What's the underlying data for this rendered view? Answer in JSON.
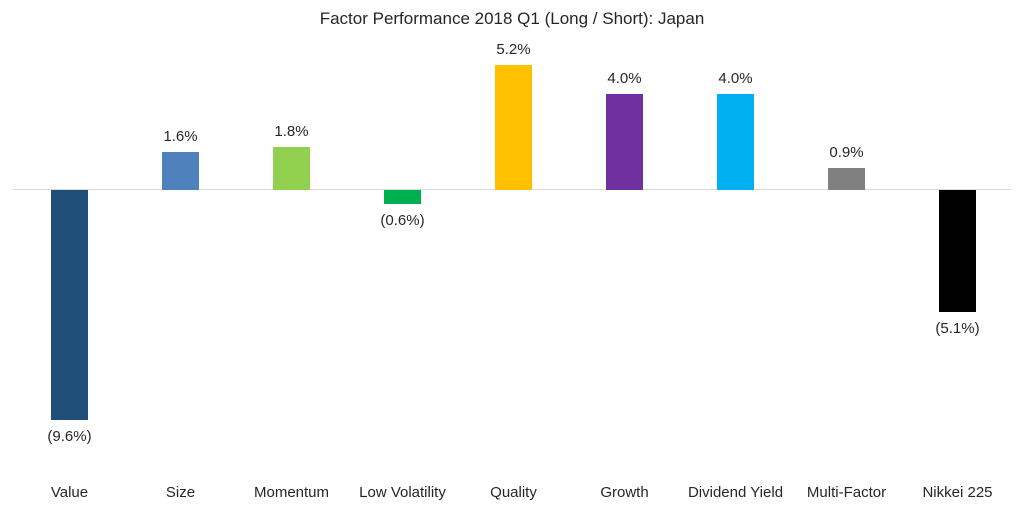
{
  "chart_data": {
    "type": "bar",
    "title": "Factor Performance 2018 Q1 (Long / Short): Japan",
    "categories": [
      "Value",
      "Size",
      "Momentum",
      "Low Volatility",
      "Quality",
      "Growth",
      "Dividend Yield",
      "Multi-Factor",
      "Nikkei 225"
    ],
    "values": [
      -9.6,
      1.6,
      1.8,
      -0.6,
      5.2,
      4.0,
      4.0,
      0.9,
      -5.1
    ],
    "data_labels": [
      "(9.6%)",
      "1.6%",
      "1.8%",
      "(0.6%)",
      "5.2%",
      "4.0%",
      "4.0%",
      "0.9%",
      "(5.1%)"
    ],
    "bar_colors": [
      "#1F4E79",
      "#4F81BD",
      "#92D050",
      "#00B050",
      "#FFC000",
      "#7030A0",
      "#00B0F0",
      "#808080",
      "#000000"
    ],
    "xlabel": "",
    "ylabel": "",
    "ylim": [
      -10.5,
      6.5
    ],
    "grid": false,
    "legend": "none",
    "y_axis_visible": false,
    "axis_line_color": "#D9D9D9",
    "text_color": "#262626",
    "background_color": "#FFFFFF"
  }
}
